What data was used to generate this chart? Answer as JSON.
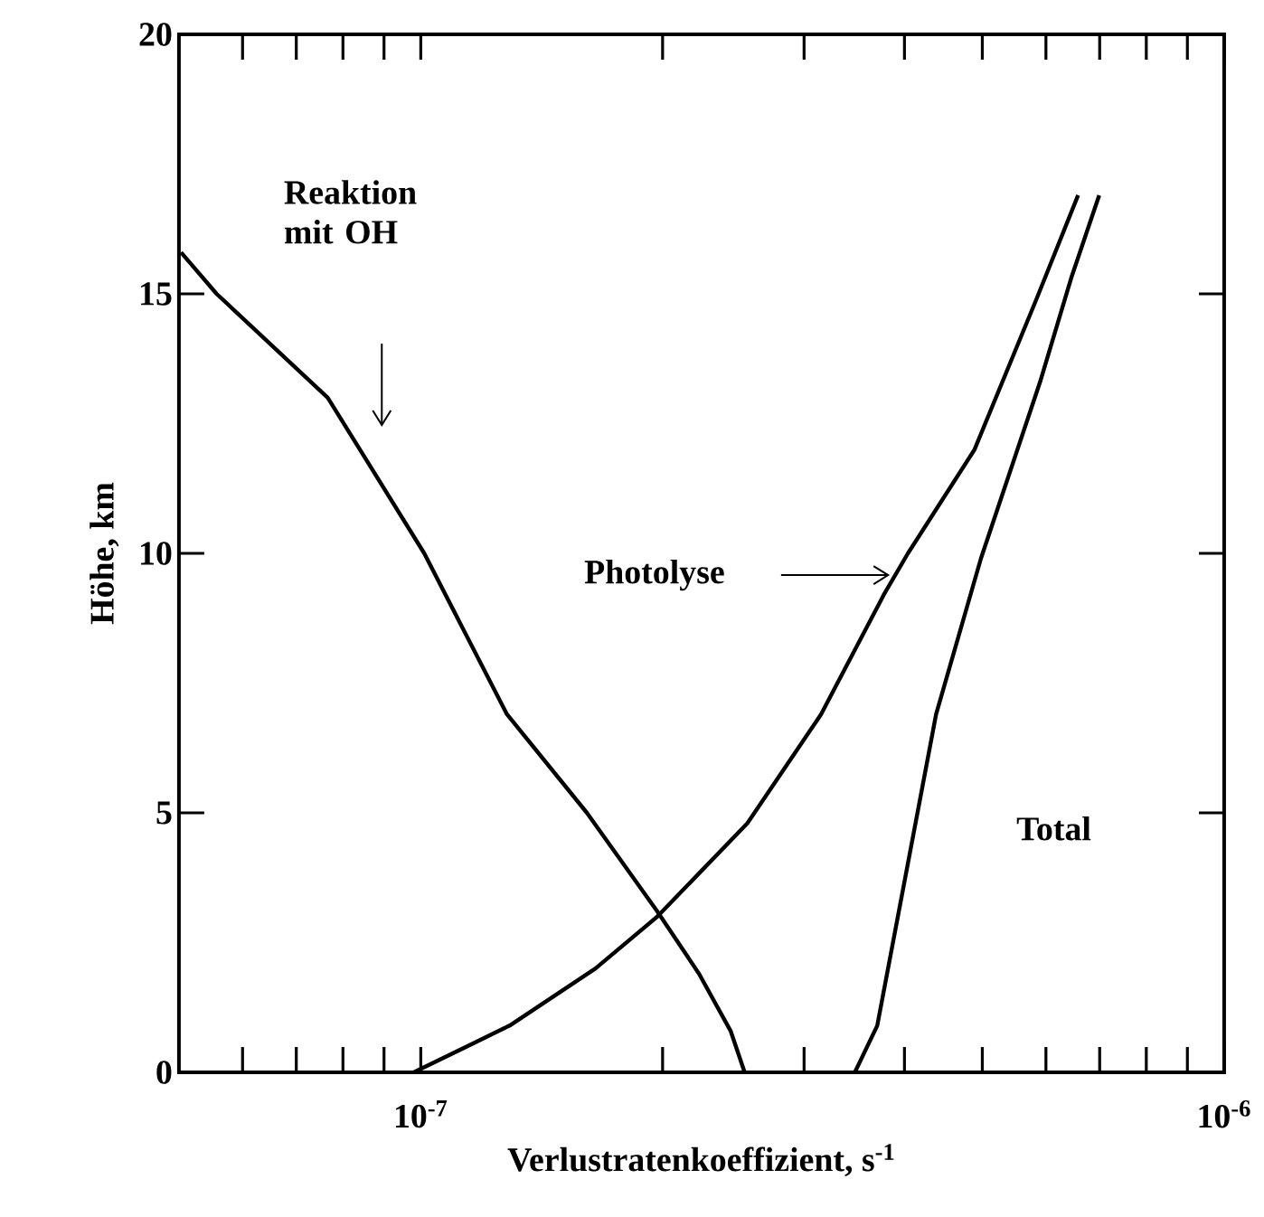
{
  "chart_data": {
    "type": "line",
    "xlabel": "Verlustratenkoeffizient, s$^{-1}$",
    "ylabel": "Höhe, km",
    "log": "x",
    "xlim": [
      5e-08,
      1e-06
    ],
    "ylim": [
      0,
      20
    ],
    "xticks": [
      {
        "value": 6e-08,
        "label": null
      },
      {
        "value": 7e-08,
        "label": null
      },
      {
        "value": 8e-08,
        "label": null
      },
      {
        "value": 9e-08,
        "label": null
      },
      {
        "value": 1e-07,
        "label": "10$^{-7}$"
      },
      {
        "value": 2e-07,
        "label": null
      },
      {
        "value": 3e-07,
        "label": null
      },
      {
        "value": 4e-07,
        "label": null
      },
      {
        "value": 5e-07,
        "label": null
      },
      {
        "value": 6e-07,
        "label": null
      },
      {
        "value": 7e-07,
        "label": null
      },
      {
        "value": 8e-07,
        "label": null
      },
      {
        "value": 9e-07,
        "label": null
      },
      {
        "value": 1e-06,
        "label": "10$^{-6}$"
      }
    ],
    "yticks": [
      0,
      5,
      10,
      15,
      20
    ],
    "grid": false,
    "marker": "none",
    "line_style": "solid",
    "series": [
      {
        "color": "#000000",
        "x": [
          5.03e-08,
          5.57e-08,
          7.66e-08,
          1.01e-07,
          1.28e-07,
          1.61e-07,
          1.97e-07,
          2.22e-07,
          2.43e-07,
          2.53e-07
        ],
        "values": [
          15.8,
          15,
          13,
          10,
          6.9,
          5,
          3.1,
          1.9,
          0.8,
          0
        ]
      },
      {
        "color": "#000000",
        "x": [
          9.8e-08,
          1.29e-07,
          1.65e-07,
          1.97e-07,
          2.55e-07,
          3.15e-07,
          3.77e-07,
          4.04e-07,
          4.89e-07,
          5.84e-07,
          6.58e-07
        ],
        "values": [
          0,
          0.9,
          2,
          3,
          4.8,
          6.9,
          9.2,
          10,
          12,
          14.9,
          16.9
        ]
      },
      {
        "color": "#000000",
        "x": [
          3.47e-07,
          3.7e-07,
          4.38e-07,
          4.98e-07,
          5.9e-07,
          6.45e-07,
          6.99e-07
        ],
        "values": [
          0,
          0.9,
          6.9,
          9.9,
          13.3,
          15.3,
          16.9
        ]
      }
    ],
    "annotations": [
      "Reaktion mit OH",
      "Photolyse",
      "Total"
    ]
  }
}
